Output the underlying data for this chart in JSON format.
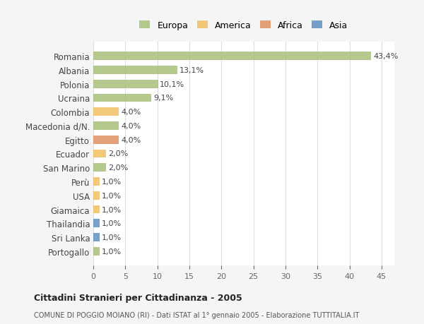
{
  "countries": [
    "Romania",
    "Albania",
    "Polonia",
    "Ucraina",
    "Colombia",
    "Macedonia d/N.",
    "Egitto",
    "Ecuador",
    "San Marino",
    "Perù",
    "USA",
    "Giamaica",
    "Thailandia",
    "Sri Lanka",
    "Portogallo"
  ],
  "values": [
    43.4,
    13.1,
    10.1,
    9.1,
    4.0,
    4.0,
    4.0,
    2.0,
    2.0,
    1.0,
    1.0,
    1.0,
    1.0,
    1.0,
    1.0
  ],
  "labels": [
    "43,4%",
    "13,1%",
    "10,1%",
    "9,1%",
    "4,0%",
    "4,0%",
    "4,0%",
    "2,0%",
    "2,0%",
    "1,0%",
    "1,0%",
    "1,0%",
    "1,0%",
    "1,0%",
    "1,0%"
  ],
  "continents": [
    "Europa",
    "Europa",
    "Europa",
    "Europa",
    "America",
    "Europa",
    "Africa",
    "America",
    "Europa",
    "America",
    "America",
    "America",
    "Asia",
    "Asia",
    "Europa"
  ],
  "continent_colors": {
    "Europa": "#a8c07a",
    "America": "#f0c060",
    "Africa": "#e09060",
    "Asia": "#6090c0"
  },
  "legend_items": [
    "Europa",
    "America",
    "Africa",
    "Asia"
  ],
  "title": "Cittadini Stranieri per Cittadinanza - 2005",
  "subtitle": "COMUNE DI POGGIO MOIANO (RI) - Dati ISTAT al 1° gennaio 2005 - Elaborazione TUTTITALIA.IT",
  "xlim": [
    0,
    47
  ],
  "xticks": [
    0,
    5,
    10,
    15,
    20,
    25,
    30,
    35,
    40,
    45
  ],
  "bg_color": "#f5f5f5",
  "plot_bg_color": "#ffffff",
  "grid_color": "#dddddd"
}
